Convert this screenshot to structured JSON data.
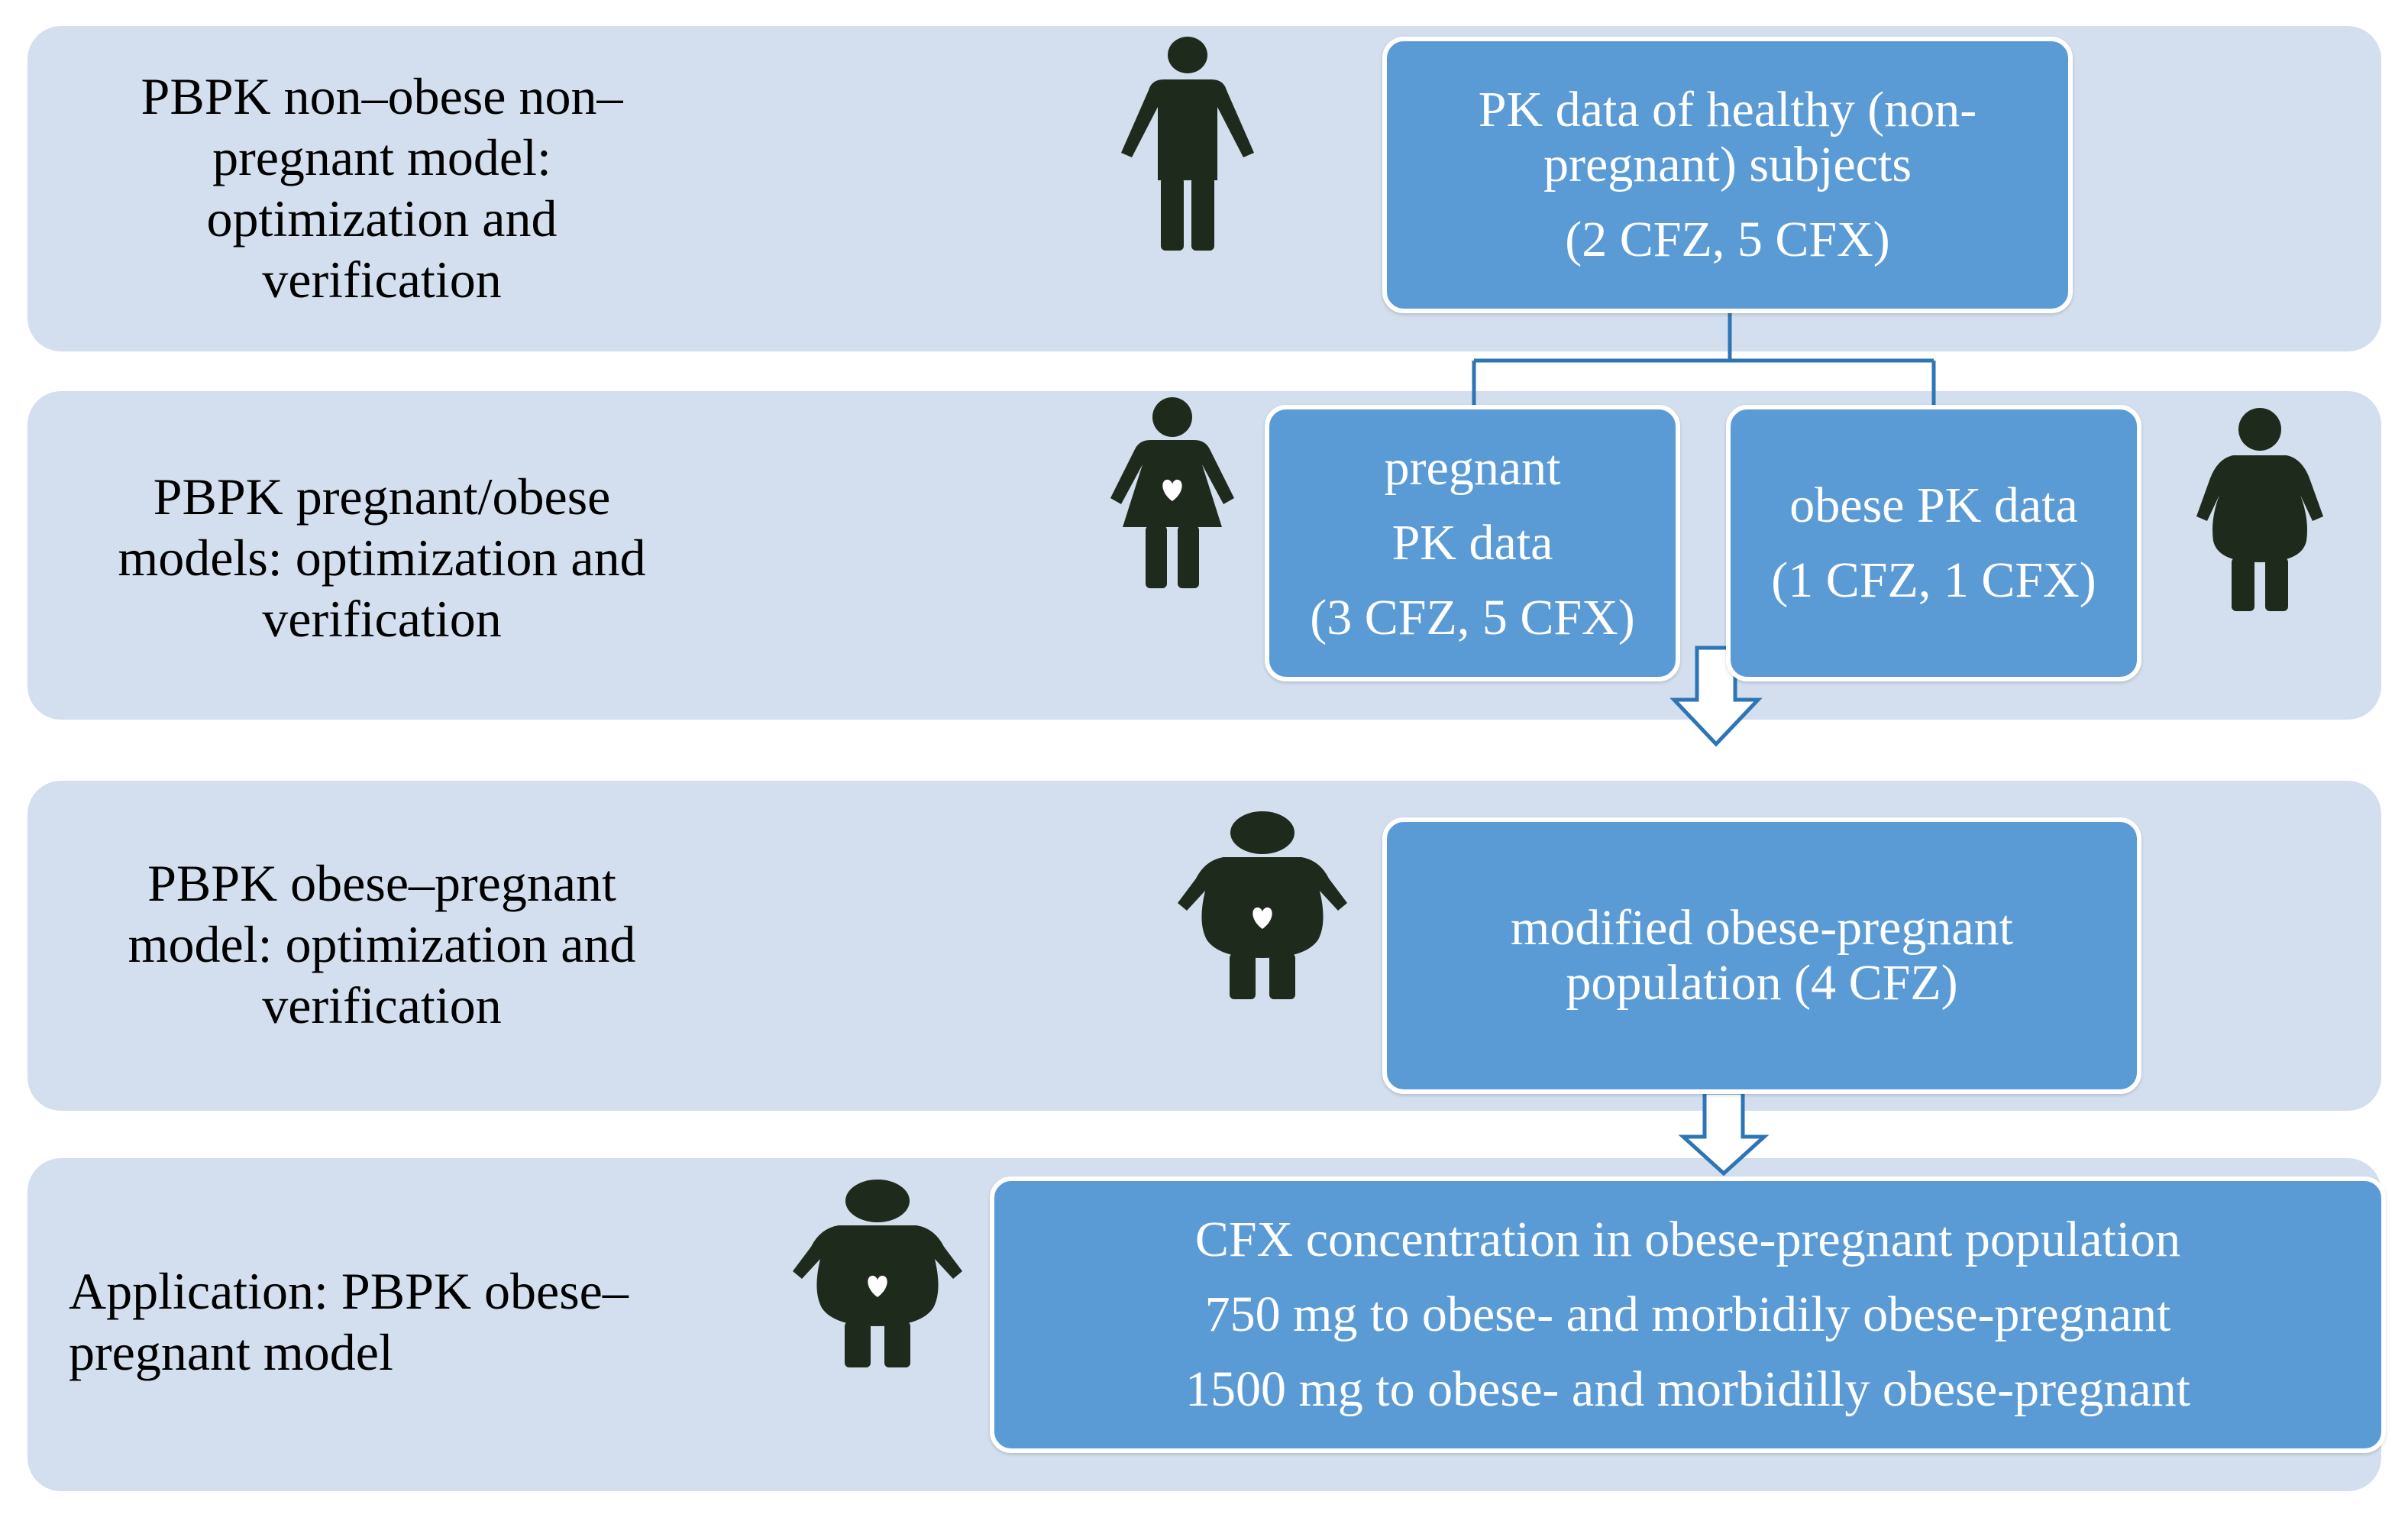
{
  "colors": {
    "band": "#d3deee",
    "box": "#5b9bd5",
    "icon": "#1e2b1c",
    "connector": "#2e75b6"
  },
  "rows": [
    {
      "label": "PBPK non–obese non–\npregnant model:\noptimization and\nverification",
      "icon": "standing-person-icon",
      "box": {
        "line1": "PK data of healthy (non-",
        "line2": "pregnant) subjects",
        "line3": "(2 CFZ, 5 CFX)"
      }
    },
    {
      "label": "PBPK pregnant/obese\nmodels: optimization and\nverification",
      "pregnant": {
        "icon": "pregnant-woman-icon",
        "line1": "pregnant",
        "line2": "PK data",
        "line3": "(3 CFZ, 5 CFX)"
      },
      "obese": {
        "icon": "obese-person-icon",
        "line1": "obese PK data",
        "line2": "(1 CFZ, 1 CFX)"
      }
    },
    {
      "label": "PBPK obese–pregnant\nmodel: optimization and\nverification",
      "icon": "obese-pregnant-woman-icon",
      "box": {
        "line1": "modified obese-pregnant",
        "line2": "population (4 CFZ)"
      }
    },
    {
      "label": "Application: PBPK obese–\npregnant model",
      "icon": "obese-pregnant-woman-icon",
      "box": {
        "line1": "CFX concentration in obese-pregnant population",
        "line2": "750 mg to obese- and morbidily obese-pregnant",
        "line3": "1500 mg to obese- and morbidilly obese-pregnant"
      }
    }
  ]
}
